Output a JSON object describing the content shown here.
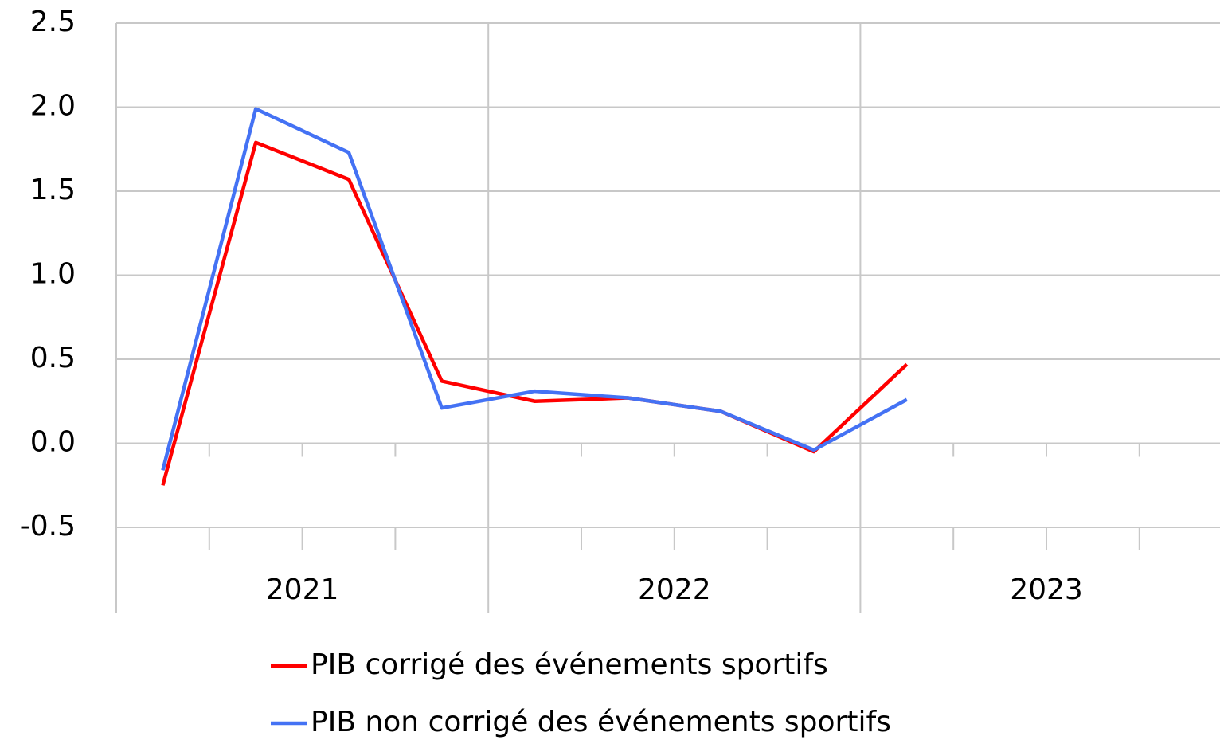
{
  "chart_data": {
    "type": "line",
    "categories": [
      null,
      null,
      null,
      null,
      null,
      null,
      null,
      null,
      null,
      null,
      null,
      null
    ],
    "years": [
      "2021",
      "2022",
      "2023"
    ],
    "series": [
      {
        "name": "PIB corrigé des événements sportifs",
        "color": "#ff0000",
        "values": [
          -0.25,
          1.79,
          1.57,
          0.37,
          0.25,
          0.27,
          0.19,
          -0.05,
          0.47,
          null,
          null,
          null
        ]
      },
      {
        "name": "PIB non corrigé des événements sportifs",
        "color": "#4472f4",
        "values": [
          -0.16,
          1.99,
          1.73,
          0.21,
          0.31,
          0.27,
          0.19,
          -0.04,
          0.26,
          null,
          null,
          null
        ]
      }
    ],
    "ylim": [
      -0.5,
      2.5
    ],
    "yticks": [
      {
        "value": -0.5,
        "label": "-0.5"
      },
      {
        "value": 0,
        "label": "0.0"
      },
      {
        "value": 0.5,
        "label": "0.5"
      },
      {
        "value": 1,
        "label": "1.0"
      },
      {
        "value": 1.5,
        "label": "1.5"
      },
      {
        "value": 2,
        "label": "2.0"
      },
      {
        "value": 2.5,
        "label": "2.5"
      }
    ],
    "grid": true
  }
}
